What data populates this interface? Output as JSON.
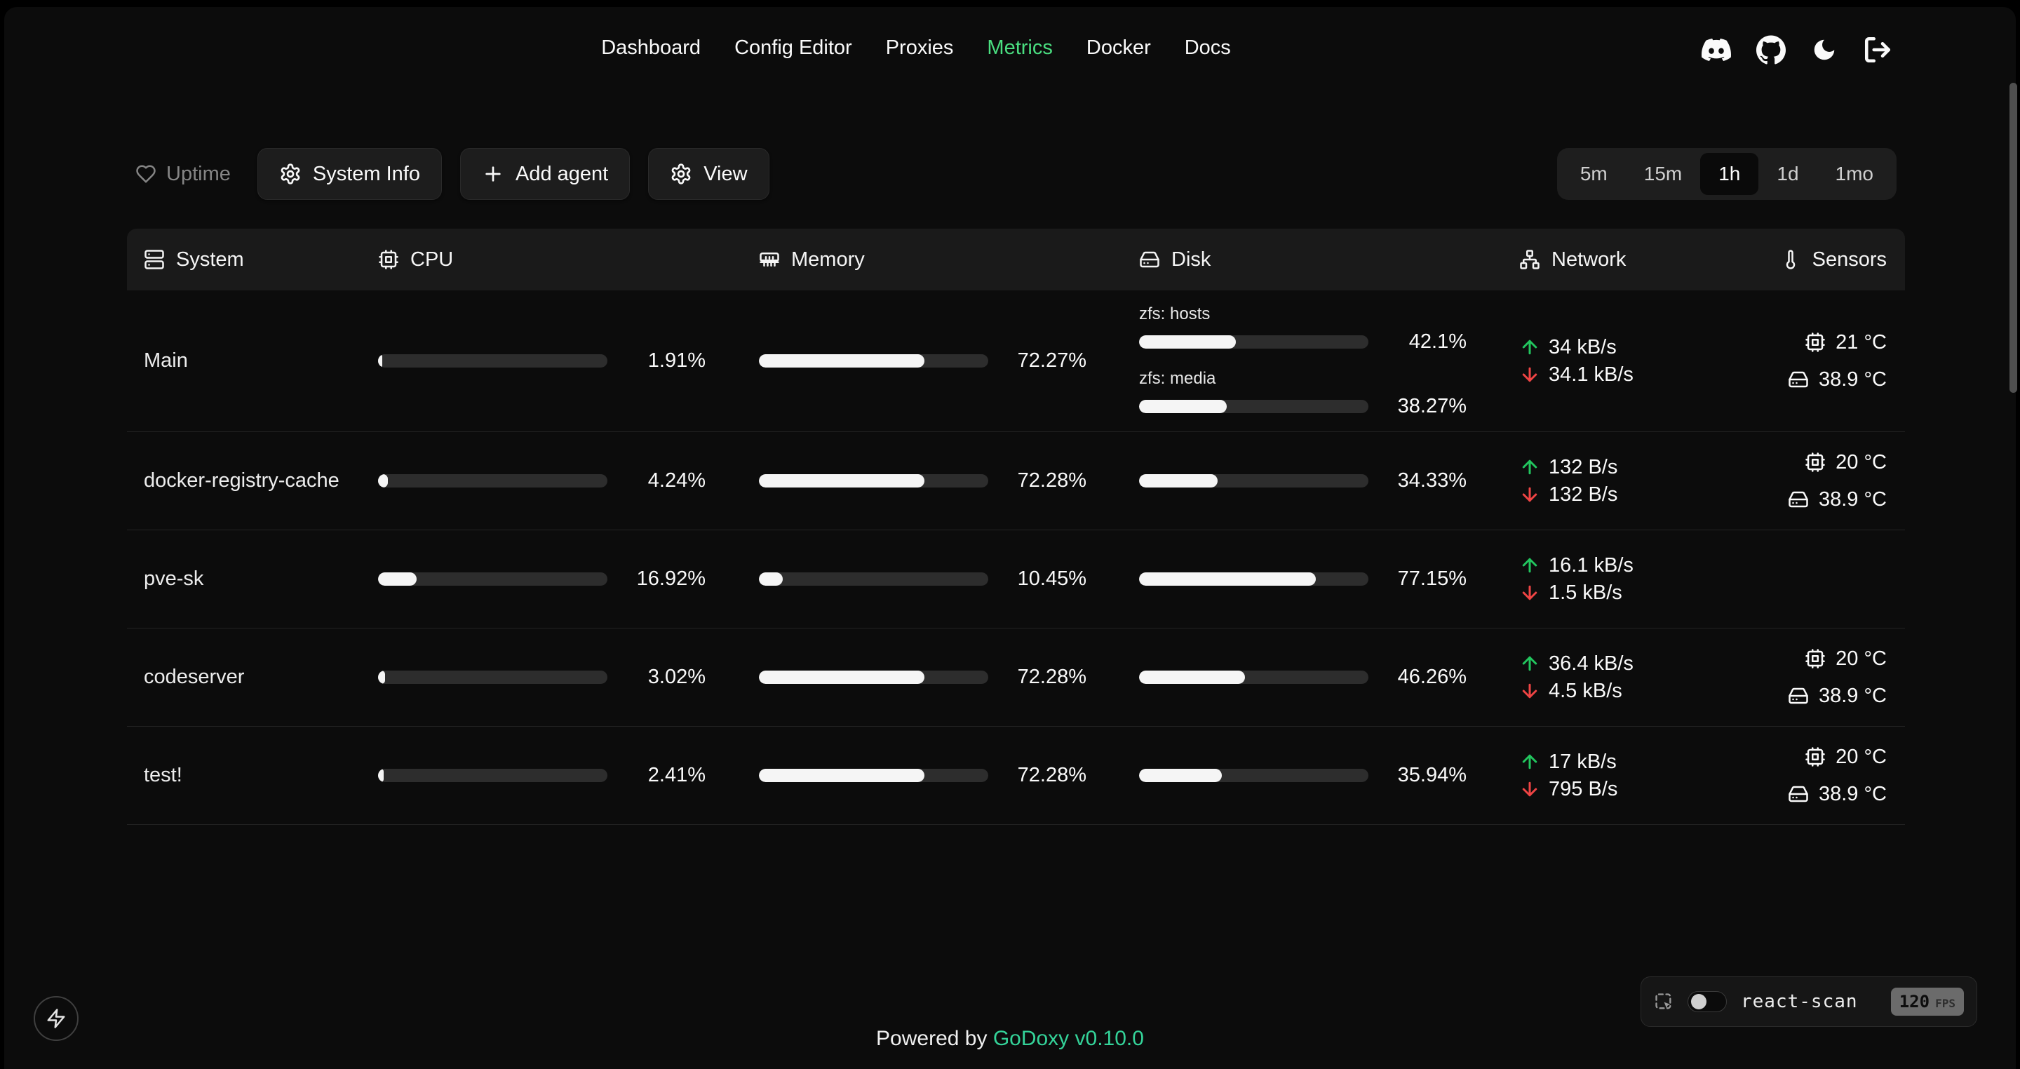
{
  "nav": {
    "items": [
      "Dashboard",
      "Config Editor",
      "Proxies",
      "Metrics",
      "Docker",
      "Docs"
    ],
    "active_item": "Metrics",
    "icons": [
      "discord-icon",
      "github-icon",
      "moon-icon",
      "logout-icon"
    ]
  },
  "toolbar": {
    "uptime": "Uptime",
    "system_info": "System Info",
    "add_agent": "Add agent",
    "view": "View",
    "time_ranges": [
      "5m",
      "15m",
      "1h",
      "1d",
      "1mo"
    ],
    "active_range": "1h"
  },
  "table": {
    "columns": [
      "System",
      "CPU",
      "Memory",
      "Disk",
      "Network",
      "Sensors"
    ],
    "column_icons": [
      "server-icon",
      "cpu-icon",
      "memory-icon",
      "disk-icon",
      "network-icon",
      "thermometer-icon"
    ],
    "rows": [
      {
        "name": "Main",
        "cpu": {
          "percent": 1.91,
          "label": "1.91%"
        },
        "memory": {
          "percent": 72.27,
          "label": "72.27%"
        },
        "disks": [
          {
            "name": "zfs: hosts",
            "percent": 42.1,
            "label": "42.1%"
          },
          {
            "name": "zfs: media",
            "percent": 38.27,
            "label": "38.27%"
          }
        ],
        "network": {
          "upload": "34 kB/s",
          "download": "34.1 kB/s"
        },
        "sensors": [
          {
            "icon": "cpu-icon",
            "value": "21 °C"
          },
          {
            "icon": "disk-icon",
            "value": "38.9 °C"
          }
        ]
      },
      {
        "name": "docker-registry-cache",
        "cpu": {
          "percent": 4.24,
          "label": "4.24%"
        },
        "memory": {
          "percent": 72.28,
          "label": "72.28%"
        },
        "disks": [
          {
            "percent": 34.33,
            "label": "34.33%"
          }
        ],
        "network": {
          "upload": "132 B/s",
          "download": "132 B/s"
        },
        "sensors": [
          {
            "icon": "cpu-icon",
            "value": "20 °C"
          },
          {
            "icon": "disk-icon",
            "value": "38.9 °C"
          }
        ]
      },
      {
        "name": "pve-sk",
        "cpu": {
          "percent": 16.92,
          "label": "16.92%"
        },
        "memory": {
          "percent": 10.45,
          "label": "10.45%"
        },
        "disks": [
          {
            "percent": 77.15,
            "label": "77.15%"
          }
        ],
        "network": {
          "upload": "16.1 kB/s",
          "download": "1.5 kB/s"
        },
        "sensors": []
      },
      {
        "name": "codeserver",
        "cpu": {
          "percent": 3.02,
          "label": "3.02%"
        },
        "memory": {
          "percent": 72.28,
          "label": "72.28%"
        },
        "disks": [
          {
            "percent": 46.26,
            "label": "46.26%"
          }
        ],
        "network": {
          "upload": "36.4 kB/s",
          "download": "4.5 kB/s"
        },
        "sensors": [
          {
            "icon": "cpu-icon",
            "value": "20 °C"
          },
          {
            "icon": "disk-icon",
            "value": "38.9 °C"
          }
        ]
      },
      {
        "name": "test!",
        "cpu": {
          "percent": 2.41,
          "label": "2.41%"
        },
        "memory": {
          "percent": 72.28,
          "label": "72.28%"
        },
        "disks": [
          {
            "percent": 35.94,
            "label": "35.94%"
          }
        ],
        "network": {
          "upload": "17 kB/s",
          "download": "795 B/s"
        },
        "sensors": [
          {
            "icon": "cpu-icon",
            "value": "20 °C"
          },
          {
            "icon": "disk-icon",
            "value": "38.9 °C"
          }
        ]
      }
    ]
  },
  "footer": {
    "powered_by": "Powered by",
    "brand": "GoDoxy",
    "version": "v0.10.0"
  },
  "react_scan": {
    "label": "react-scan",
    "fps_value": "120",
    "fps_unit": "FPS",
    "toggle_on": false
  },
  "colors": {
    "accent_green": "#4ade80",
    "brand_teal": "#34d399",
    "upload_green": "#22c55e",
    "download_red": "#ef4444"
  }
}
